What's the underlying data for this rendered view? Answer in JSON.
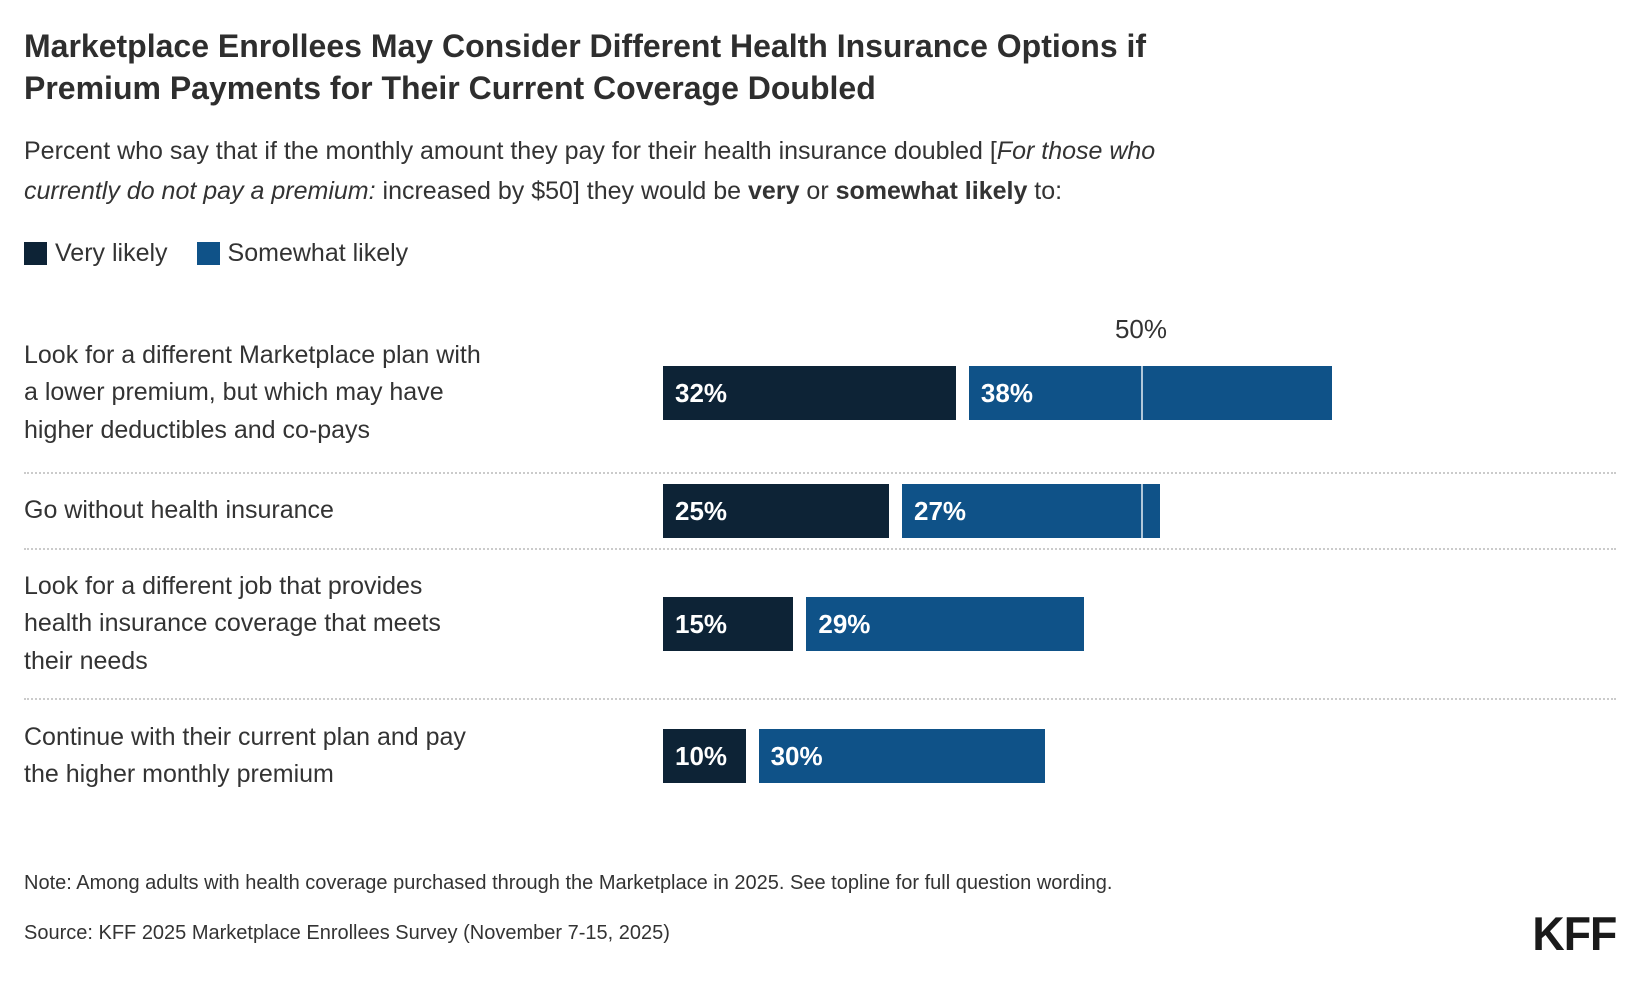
{
  "header": {
    "title": "Marketplace Enrollees May Consider Different Health Insurance Options if\nPremium Payments for Their Current Coverage Doubled",
    "subtitle_segments": [
      {
        "text": "Percent who say that if the monthly amount they pay for their health insurance doubled ["
      },
      {
        "text": "For those who\ncurrently do not pay a premium:",
        "italic": true
      },
      {
        "text": " increased by $50] they would be "
      },
      {
        "text": "very",
        "bold": true
      },
      {
        "text": " or "
      },
      {
        "text": "somewhat likely",
        "bold": true
      },
      {
        "text": " to:"
      }
    ]
  },
  "legend": {
    "items": [
      {
        "label": "Very likely",
        "color": "#0D2336"
      },
      {
        "label": "Somewhat likely",
        "color": "#0F5288"
      }
    ]
  },
  "chart_data": {
    "type": "bar",
    "orientation": "horizontal",
    "stacked": true,
    "unit": "%",
    "title": "Marketplace Enrollees May Consider Different Health Insurance Options if Premium Payments for Their Current Coverage Doubled",
    "categories": [
      "Look for a different Marketplace plan with\na lower premium, but which may have\nhigher deductibles and co-pays",
      "Go without health insurance",
      "Look for a different job that provides\nhealth insurance coverage that meets\ntheir needs",
      "Continue with their current plan and pay\nthe higher monthly premium"
    ],
    "series": [
      {
        "name": "Very likely",
        "color": "#0D2336",
        "values": [
          32,
          25,
          15,
          10
        ]
      },
      {
        "name": "Somewhat likely",
        "color": "#0F5288",
        "values": [
          38,
          27,
          29,
          30
        ]
      }
    ],
    "totals": [
      70,
      52,
      44,
      40
    ],
    "reference_line": {
      "value": 50,
      "label": "50%"
    },
    "xlim": [
      0,
      100
    ],
    "grid": false,
    "legend_position": "top"
  },
  "footer": {
    "note": "Note: Among adults with health coverage purchased through the Marketplace in 2025. See topline for full question wording.",
    "source": "Source: KFF 2025 Marketplace Enrollees Survey (November 7-15, 2025)",
    "logo": "KFF"
  },
  "colors": {
    "very_likely": "#0D2336",
    "somewhat_likely": "#0F5288",
    "text": "#333333",
    "separator": "#CBCBCB",
    "reference_line": "rgba(255,255,255,0.68)"
  }
}
